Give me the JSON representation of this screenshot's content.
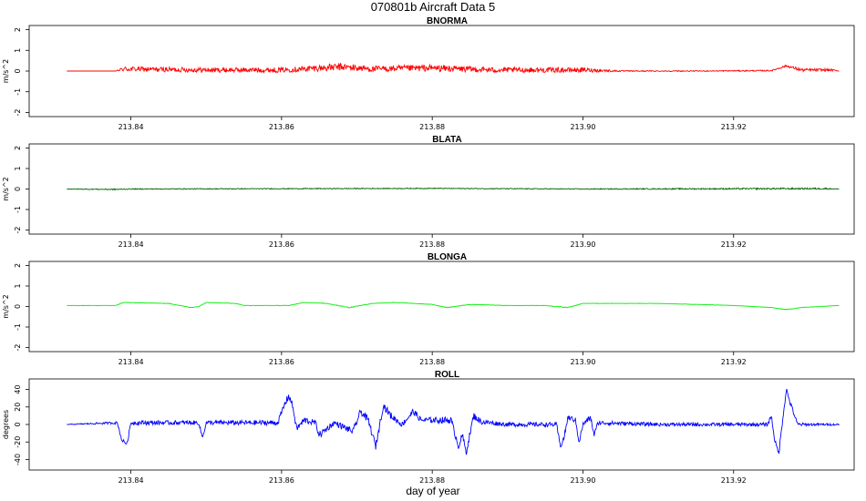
{
  "chart_data": {
    "title": "070801b   Aircraft Data 5",
    "xlabel": "day of year",
    "xlim": [
      213.8265,
      213.936
    ],
    "x_ticks": [
      213.84,
      213.86,
      213.88,
      213.9,
      213.92
    ],
    "x_tick_labels": [
      "213.84",
      "213.86",
      "213.88",
      "213.90",
      "213.92"
    ],
    "series_x_range": [
      213.8315,
      213.934
    ],
    "panels": [
      {
        "type": "line",
        "title": "BNORMA",
        "ylabel": "m/s^2",
        "ylim": [
          -2.2,
          2.2
        ],
        "y_ticks": [
          -2,
          -1,
          0,
          1,
          2
        ],
        "y_tick_labels": [
          "-2",
          "-1",
          "0",
          "1",
          "2"
        ],
        "color": "#ff0000",
        "x": [
          213.8315,
          213.838,
          213.839,
          213.85,
          213.86,
          213.868,
          213.872,
          213.88,
          213.888,
          213.9,
          213.905,
          213.915,
          213.925,
          213.927,
          213.929,
          213.933,
          213.934
        ],
        "y": [
          0.0,
          0.0,
          0.1,
          0.05,
          0.05,
          0.2,
          0.1,
          0.15,
          0.05,
          0.05,
          0.0,
          0.0,
          0.02,
          0.25,
          0.05,
          0.05,
          0.0
        ],
        "noise": [
          0,
          0,
          0.12,
          0.12,
          0.12,
          0.18,
          0.15,
          0.16,
          0.13,
          0.12,
          0.03,
          0.02,
          0.03,
          0.05,
          0.08,
          0.06,
          0
        ]
      },
      {
        "type": "line",
        "title": "BLATA",
        "ylabel": "m/s^2",
        "ylim": [
          -2.2,
          2.2
        ],
        "y_ticks": [
          -2,
          -1,
          0,
          1,
          2
        ],
        "y_tick_labels": [
          "-2",
          "-1",
          "0",
          "1",
          "2"
        ],
        "color": "#006400",
        "x": [
          213.8315,
          213.838,
          213.84,
          213.88,
          213.9,
          213.932,
          213.934
        ],
        "y": [
          0.0,
          -0.02,
          0.0,
          0.03,
          0.0,
          0.02,
          0.0
        ],
        "noise": [
          0.01,
          0.03,
          0.02,
          0.02,
          0.02,
          0.04,
          0.01
        ]
      },
      {
        "type": "line",
        "title": "BLONGA",
        "ylabel": "m/s^2",
        "ylim": [
          -2.2,
          2.2
        ],
        "y_ticks": [
          -2,
          -1,
          0,
          1,
          2
        ],
        "y_tick_labels": [
          "-2",
          "-1",
          "0",
          "1",
          "2"
        ],
        "color": "#00ee00",
        "x": [
          213.8315,
          213.838,
          213.839,
          213.845,
          213.848,
          213.849,
          213.85,
          213.854,
          213.855,
          213.861,
          213.863,
          213.866,
          213.869,
          213.872,
          213.875,
          213.88,
          213.882,
          213.885,
          213.89,
          213.895,
          213.898,
          213.9,
          213.91,
          213.92,
          213.925,
          213.927,
          213.929,
          213.934
        ],
        "y": [
          0.05,
          0.05,
          0.2,
          0.15,
          -0.05,
          0.0,
          0.2,
          0.15,
          0.05,
          0.05,
          0.2,
          0.15,
          -0.05,
          0.15,
          0.2,
          0.1,
          -0.05,
          0.1,
          0.05,
          0.05,
          -0.05,
          0.15,
          0.15,
          0.05,
          -0.05,
          -0.15,
          -0.05,
          0.05
        ],
        "noise": [
          0.005,
          0.005,
          0.01,
          0.01,
          0.01,
          0.01,
          0.01,
          0.01,
          0.01,
          0.01,
          0.01,
          0.01,
          0.02,
          0.01,
          0.01,
          0.01,
          0.02,
          0.01,
          0.01,
          0.01,
          0.02,
          0.01,
          0.01,
          0.01,
          0.01,
          0.02,
          0.01,
          0.005
        ]
      },
      {
        "type": "line",
        "title": "ROLL",
        "ylabel": "degrees",
        "ylim": [
          -52,
          52
        ],
        "y_ticks": [
          -40,
          -20,
          0,
          20,
          40
        ],
        "y_tick_labels": [
          "-40",
          "-20",
          "0",
          "20",
          "40"
        ],
        "color": "#0000ff",
        "x": [
          213.8315,
          213.8382,
          213.8388,
          213.8395,
          213.84,
          213.849,
          213.8495,
          213.85,
          213.8595,
          213.8605,
          213.861,
          213.8615,
          213.862,
          213.863,
          213.8645,
          213.865,
          213.867,
          213.8695,
          213.8705,
          213.8715,
          213.8725,
          213.8735,
          213.8745,
          213.876,
          213.8775,
          213.8785,
          213.8825,
          213.883,
          213.8835,
          213.884,
          213.8845,
          213.8855,
          213.8865,
          213.89,
          213.8965,
          213.897,
          213.8975,
          213.898,
          213.899,
          213.8995,
          213.9,
          213.901,
          213.9015,
          213.902,
          213.91,
          213.9245,
          213.925,
          213.9255,
          213.926,
          213.9265,
          213.927,
          213.9275,
          213.9285,
          213.93,
          213.934
        ],
        "y": [
          0,
          2,
          -18,
          -22,
          2,
          2,
          -15,
          2,
          2,
          25,
          33,
          20,
          -5,
          5,
          2,
          -12,
          2,
          -8,
          15,
          5,
          -25,
          22,
          10,
          0,
          15,
          5,
          5,
          -10,
          -25,
          -12,
          -32,
          10,
          3,
          0,
          0,
          -25,
          -15,
          8,
          5,
          -20,
          0,
          8,
          -12,
          2,
          0,
          0,
          10,
          -20,
          -33,
          5,
          40,
          25,
          0,
          0,
          0
        ],
        "noise": [
          0.3,
          1.5,
          2,
          2,
          2.5,
          2.5,
          2,
          2.5,
          3,
          4,
          4,
          4,
          3.5,
          4,
          3,
          4,
          3,
          4,
          4,
          4,
          4,
          4,
          4,
          3,
          4,
          3,
          4,
          4,
          4,
          4,
          4,
          4,
          3,
          2.5,
          2.5,
          3,
          3,
          3,
          3,
          3,
          2.5,
          3,
          3,
          2.5,
          2,
          2,
          3,
          3,
          3,
          3,
          3,
          3,
          2,
          1.5,
          1
        ]
      }
    ]
  }
}
